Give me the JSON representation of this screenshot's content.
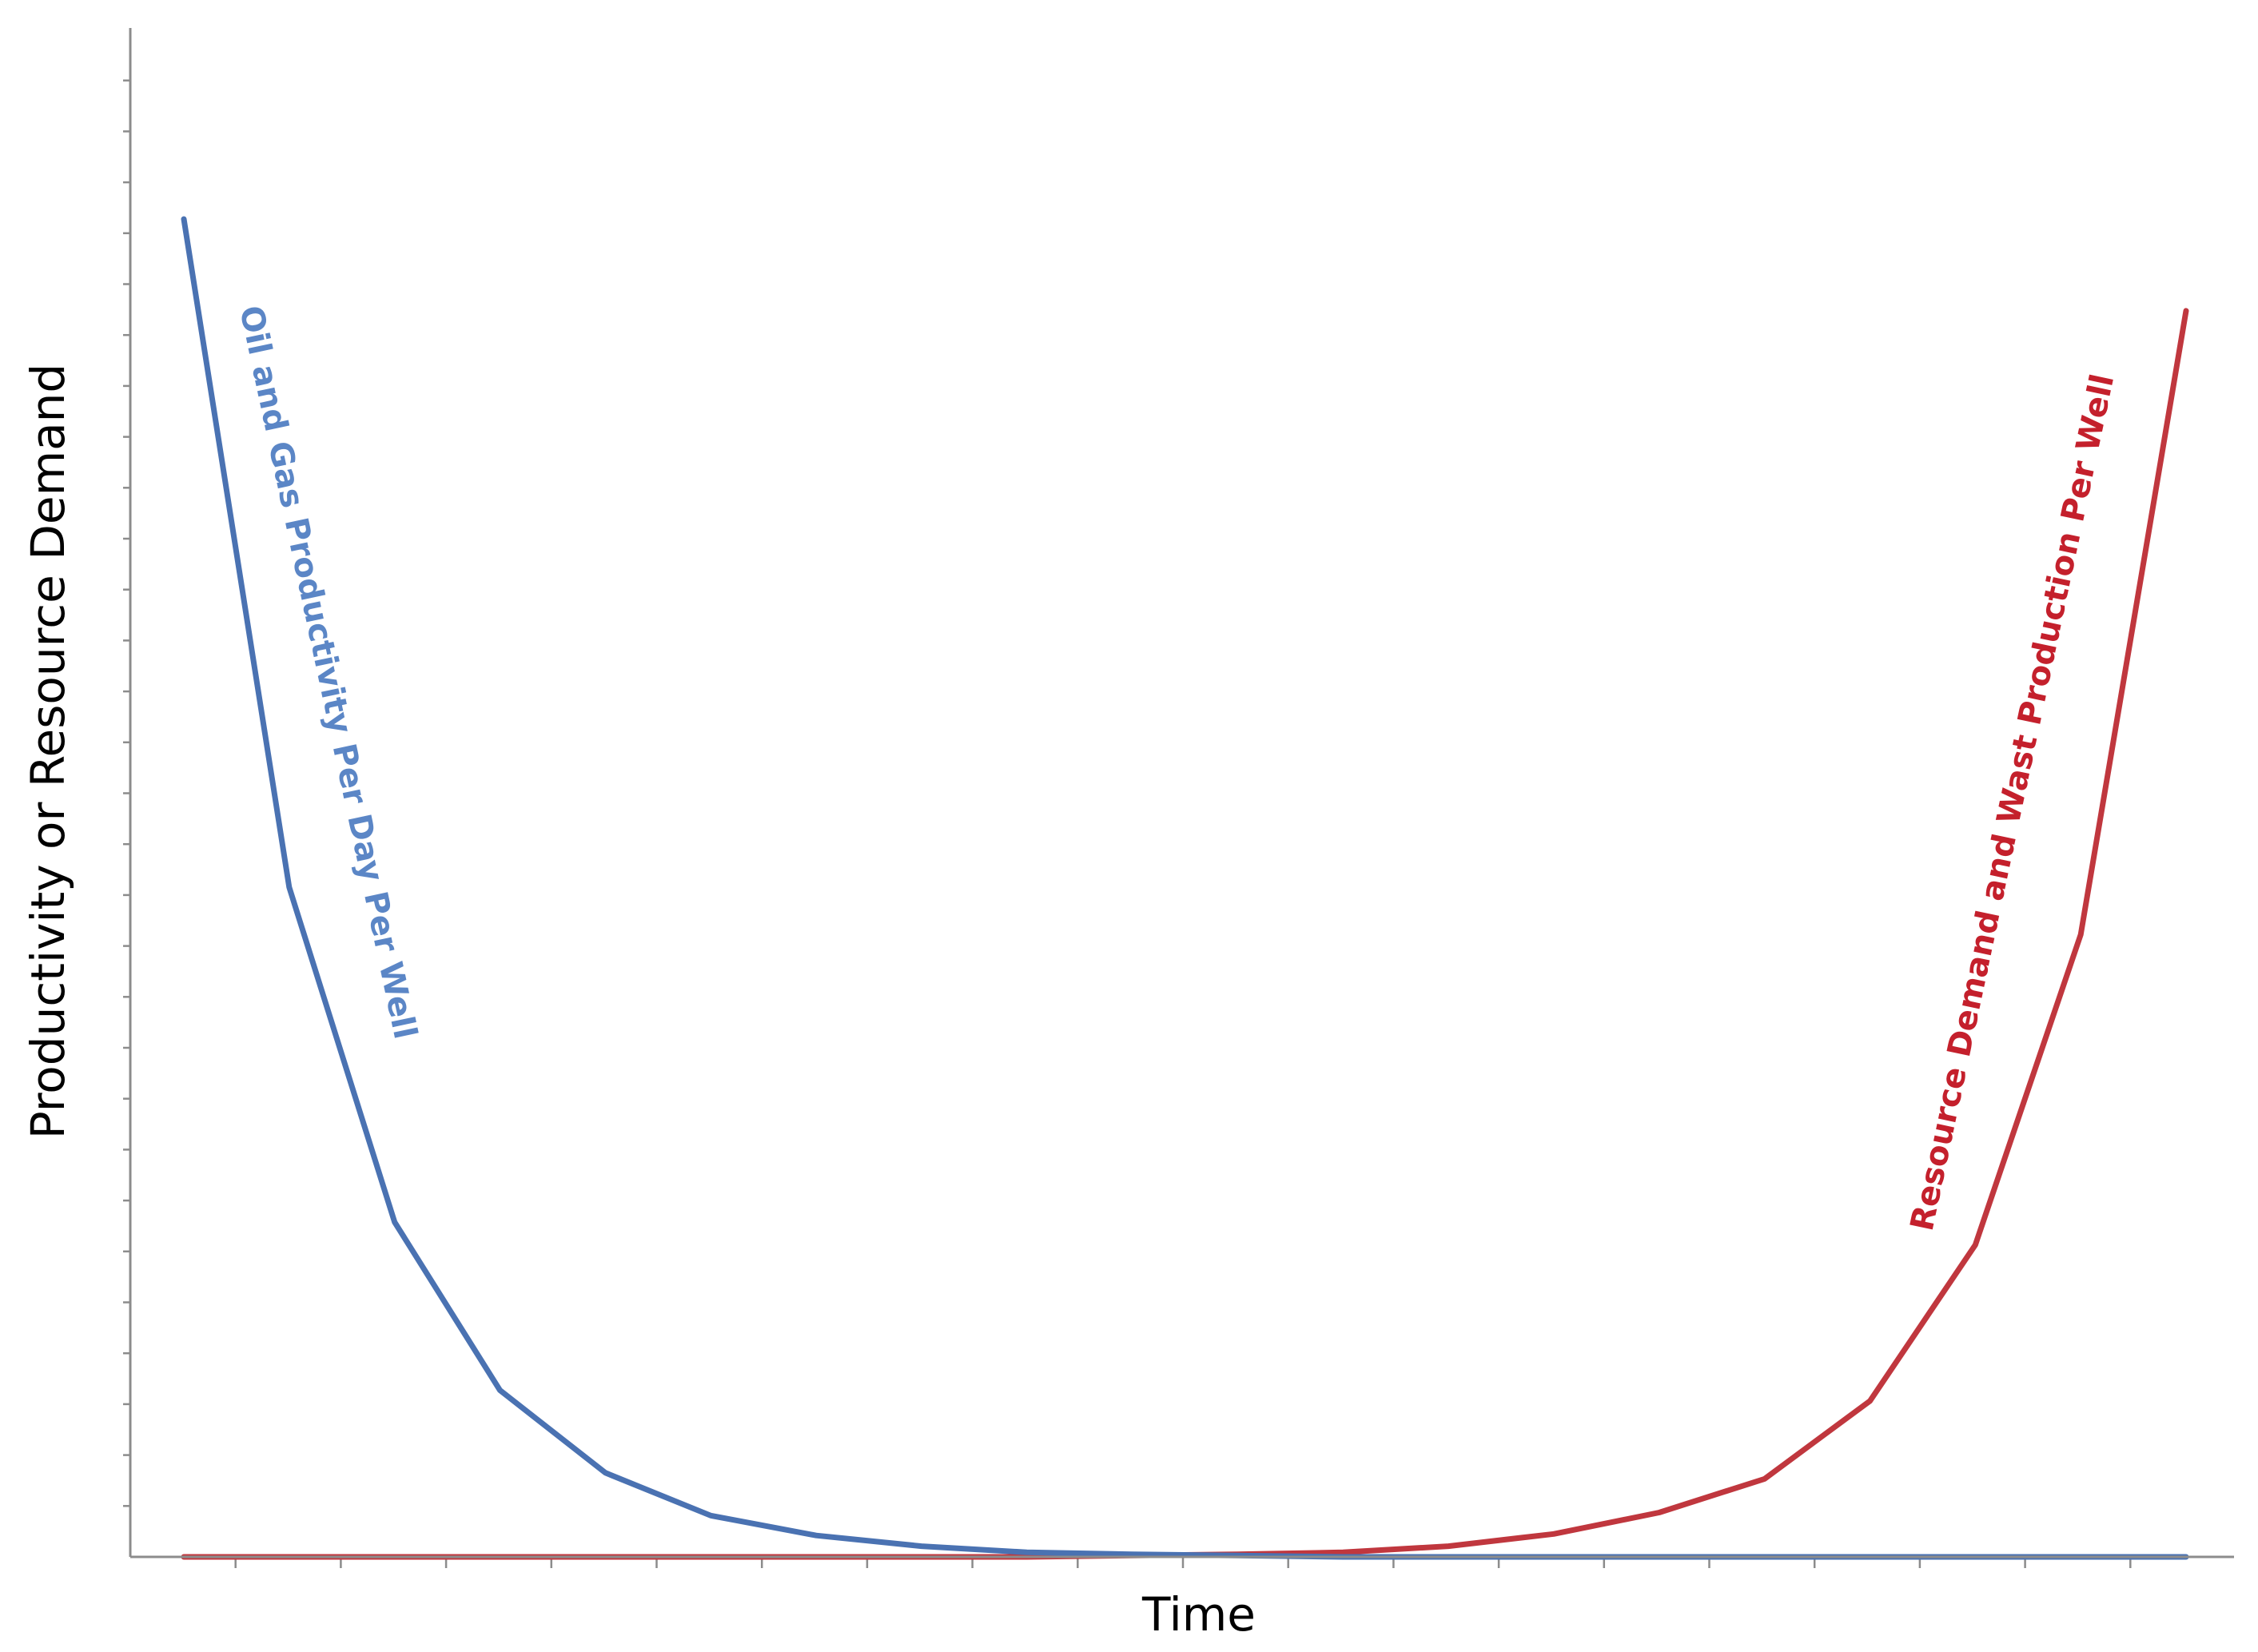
{
  "chart_data": {
    "type": "line",
    "title": "",
    "xlabel": "Time",
    "ylabel": "Productivity or Resource Demand",
    "x": [
      0,
      1,
      2,
      3,
      4,
      5,
      6,
      7,
      8,
      9,
      10,
      11,
      12,
      13,
      14,
      15,
      16,
      17,
      18,
      19
    ],
    "xlim": [
      -0.5,
      19.5
    ],
    "ylim": [
      0,
      100
    ],
    "grid": false,
    "legend": "none",
    "series": [
      {
        "name": "Oil and Gas Productivity Per Day Per Well",
        "color": "#4a72b2",
        "label_color": "#5b86c6",
        "values": [
          87.5,
          43.8,
          21.9,
          10.9,
          5.5,
          2.7,
          1.4,
          0.7,
          0.3,
          0.17,
          0.09,
          0,
          0,
          0,
          0,
          0,
          0,
          0,
          0,
          0
        ]
      },
      {
        "name": "Resource Demand and Wast Production Per Well",
        "color": "#c0373e",
        "label_color": "#c4202c",
        "values": [
          0,
          0,
          0,
          0,
          0,
          0,
          0,
          0,
          0,
          0.09,
          0.17,
          0.3,
          0.7,
          1.5,
          2.9,
          5.1,
          10.2,
          20.4,
          40.7,
          81.5
        ]
      }
    ]
  }
}
